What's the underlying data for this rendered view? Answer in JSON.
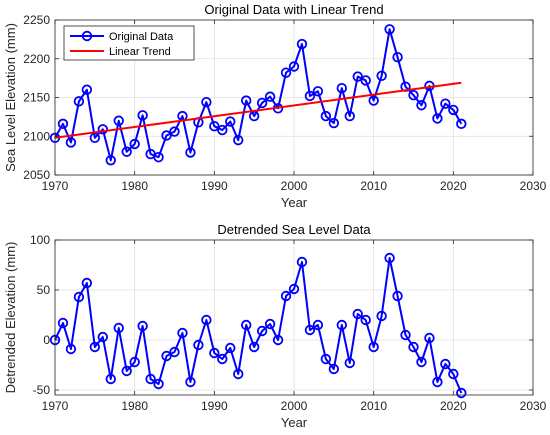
{
  "chart_data": [
    {
      "type": "line",
      "title": "Original Data with Linear Trend",
      "xlabel": "Year",
      "ylabel": "Sea Level Elevation (mm)",
      "xlim": [
        1970,
        2030
      ],
      "ylim": [
        2050,
        2250
      ],
      "xticks": [
        1970,
        1980,
        1990,
        2000,
        2010,
        2020,
        2030
      ],
      "yticks": [
        2050,
        2100,
        2150,
        2200,
        2250
      ],
      "grid": true,
      "legend": "top-left",
      "series": [
        {
          "name": "Original Data",
          "color": "#0000ff",
          "marker": "circle",
          "x": [
            1970,
            1971,
            1972,
            1973,
            1974,
            1975,
            1976,
            1977,
            1978,
            1979,
            1980,
            1981,
            1982,
            1983,
            1984,
            1985,
            1986,
            1987,
            1988,
            1989,
            1990,
            1991,
            1992,
            1993,
            1994,
            1995,
            1996,
            1997,
            1998,
            1999,
            2000,
            2001,
            2002,
            2003,
            2004,
            2005,
            2006,
            2007,
            2008,
            2009,
            2010,
            2011,
            2012,
            2013,
            2014,
            2015,
            2016,
            2017,
            2018,
            2019,
            2020,
            2021
          ],
          "y": [
            2098,
            2116,
            2092,
            2145,
            2160,
            2098,
            2109,
            2069,
            2120,
            2080,
            2090,
            2127,
            2077,
            2073,
            2101,
            2106,
            2126,
            2079,
            2118,
            2144,
            2113,
            2108,
            2119,
            2095,
            2146,
            2126,
            2143,
            2151,
            2136,
            2182,
            2190,
            2219,
            2152,
            2158,
            2126,
            2117,
            2162,
            2126,
            2177,
            2172,
            2146,
            2178,
            2238,
            2202,
            2164,
            2153,
            2140,
            2165,
            2123,
            2142,
            2134,
            2116
          ]
        },
        {
          "name": "Linear Trend",
          "color": "#ff0000",
          "x": [
            1970,
            2021
          ],
          "y": [
            2098,
            2169
          ]
        }
      ]
    },
    {
      "type": "line",
      "title": "Detrended Sea Level Data",
      "xlabel": "Year",
      "ylabel": "Detrended Elevation (mm)",
      "xlim": [
        1970,
        2030
      ],
      "ylim": [
        -55,
        100
      ],
      "xticks": [
        1970,
        1980,
        1990,
        2000,
        2010,
        2020,
        2030
      ],
      "yticks": [
        -50,
        0,
        50,
        100
      ],
      "grid": true,
      "series": [
        {
          "color": "#0000ff",
          "marker": "circle",
          "x": [
            1970,
            1971,
            1972,
            1973,
            1974,
            1975,
            1976,
            1977,
            1978,
            1979,
            1980,
            1981,
            1982,
            1983,
            1984,
            1985,
            1986,
            1987,
            1988,
            1989,
            1990,
            1991,
            1992,
            1993,
            1994,
            1995,
            1996,
            1997,
            1998,
            1999,
            2000,
            2001,
            2002,
            2003,
            2004,
            2005,
            2006,
            2007,
            2008,
            2009,
            2010,
            2011,
            2012,
            2013,
            2014,
            2015,
            2016,
            2017,
            2018,
            2019,
            2020,
            2021
          ],
          "y": [
            0,
            17,
            -9,
            43,
            57,
            -7,
            3,
            -39,
            12,
            -31,
            -22,
            14,
            -39,
            -44,
            -16,
            -12,
            7,
            -42,
            -5,
            20,
            -13,
            -19,
            -8,
            -34,
            15,
            -7,
            9,
            16,
            0,
            44,
            51,
            78,
            10,
            15,
            -19,
            -29,
            15,
            -23,
            26,
            20,
            -7,
            24,
            82,
            44,
            5,
            -7,
            -22,
            2,
            -42,
            -24,
            -34,
            -53
          ]
        }
      ]
    }
  ]
}
